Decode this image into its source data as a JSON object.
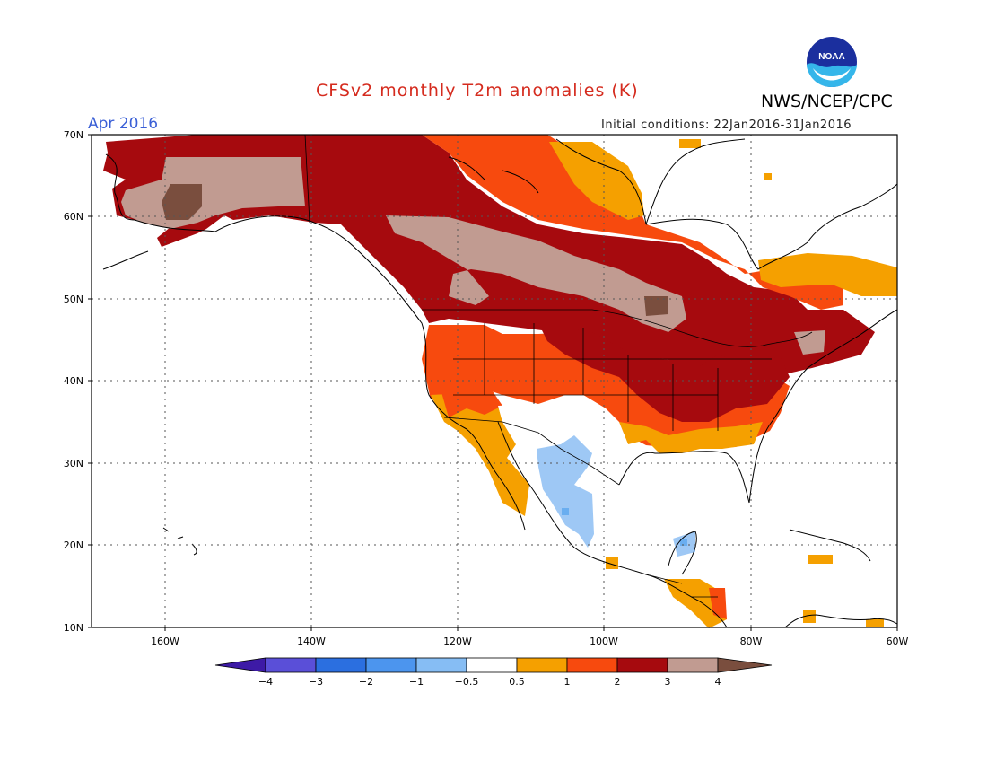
{
  "header": {
    "title": "CFSv2 monthly T2m anomalies (K)",
    "agency": "NWS/NCEP/CPC",
    "logo_text": "NOAA",
    "month": "Apr 2016",
    "initial_conditions": "Initial conditions: 22Jan2016-31Jan2016"
  },
  "colors": {
    "title": "#d52b1e",
    "month": "#3a5fd6",
    "ocean": "#ffffff",
    "below_05": "#9ec8f5",
    "below_1": "#6aaef0",
    "a05_1": "#f5a000",
    "a1_2": "#f74a0e",
    "a2_3": "#a60a0e",
    "a3_4": "#c19b91",
    "a4": "#7a4e3e"
  },
  "map": {
    "lon_labels": [
      "160W",
      "140W",
      "120W",
      "100W",
      "80W",
      "60W"
    ],
    "lat_labels": [
      "70N",
      "60N",
      "50N",
      "40N",
      "30N",
      "20N",
      "10N"
    ],
    "lon_range": [
      -170,
      -60
    ],
    "lat_range": [
      10,
      70
    ]
  },
  "colorbar": {
    "colors": [
      "#3d1aa6",
      "#5a4fd8",
      "#2b6fe0",
      "#4c95ee",
      "#86bdf4",
      "#ffffff",
      "#f5a000",
      "#f74a0e",
      "#a60a0e",
      "#c19b91",
      "#7a4e3e"
    ],
    "labels": [
      "−4",
      "−3",
      "−2",
      "−1",
      "−0.5",
      "0.5",
      "1",
      "2",
      "3",
      "4"
    ]
  }
}
